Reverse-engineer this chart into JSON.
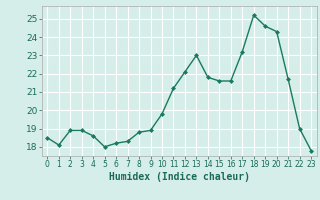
{
  "x": [
    0,
    1,
    2,
    3,
    4,
    5,
    6,
    7,
    8,
    9,
    10,
    11,
    12,
    13,
    14,
    15,
    16,
    17,
    18,
    19,
    20,
    21,
    22,
    23
  ],
  "y": [
    18.5,
    18.1,
    18.9,
    18.9,
    18.6,
    18.0,
    18.2,
    18.3,
    18.8,
    18.9,
    19.8,
    21.2,
    22.1,
    23.0,
    21.8,
    21.6,
    21.6,
    23.2,
    25.2,
    24.6,
    24.3,
    21.7,
    19.0,
    17.8
  ],
  "xlabel": "Humidex (Indice chaleur)",
  "ylim": [
    17.5,
    25.7
  ],
  "xlim": [
    -0.5,
    23.5
  ],
  "yticks": [
    18,
    19,
    20,
    21,
    22,
    23,
    24,
    25
  ],
  "xticks": [
    0,
    1,
    2,
    3,
    4,
    5,
    6,
    7,
    8,
    9,
    10,
    11,
    12,
    13,
    14,
    15,
    16,
    17,
    18,
    19,
    20,
    21,
    22,
    23
  ],
  "line_color": "#1a7a5e",
  "marker_color": "#1a7a5e",
  "bg_color": "#d5eeea",
  "grid_color": "#ffffff",
  "axes_bg": "#d5eeea",
  "tick_color": "#1a6a5a",
  "xlabel_fontsize": 7,
  "ytick_fontsize": 6.5,
  "xtick_fontsize": 5.5
}
